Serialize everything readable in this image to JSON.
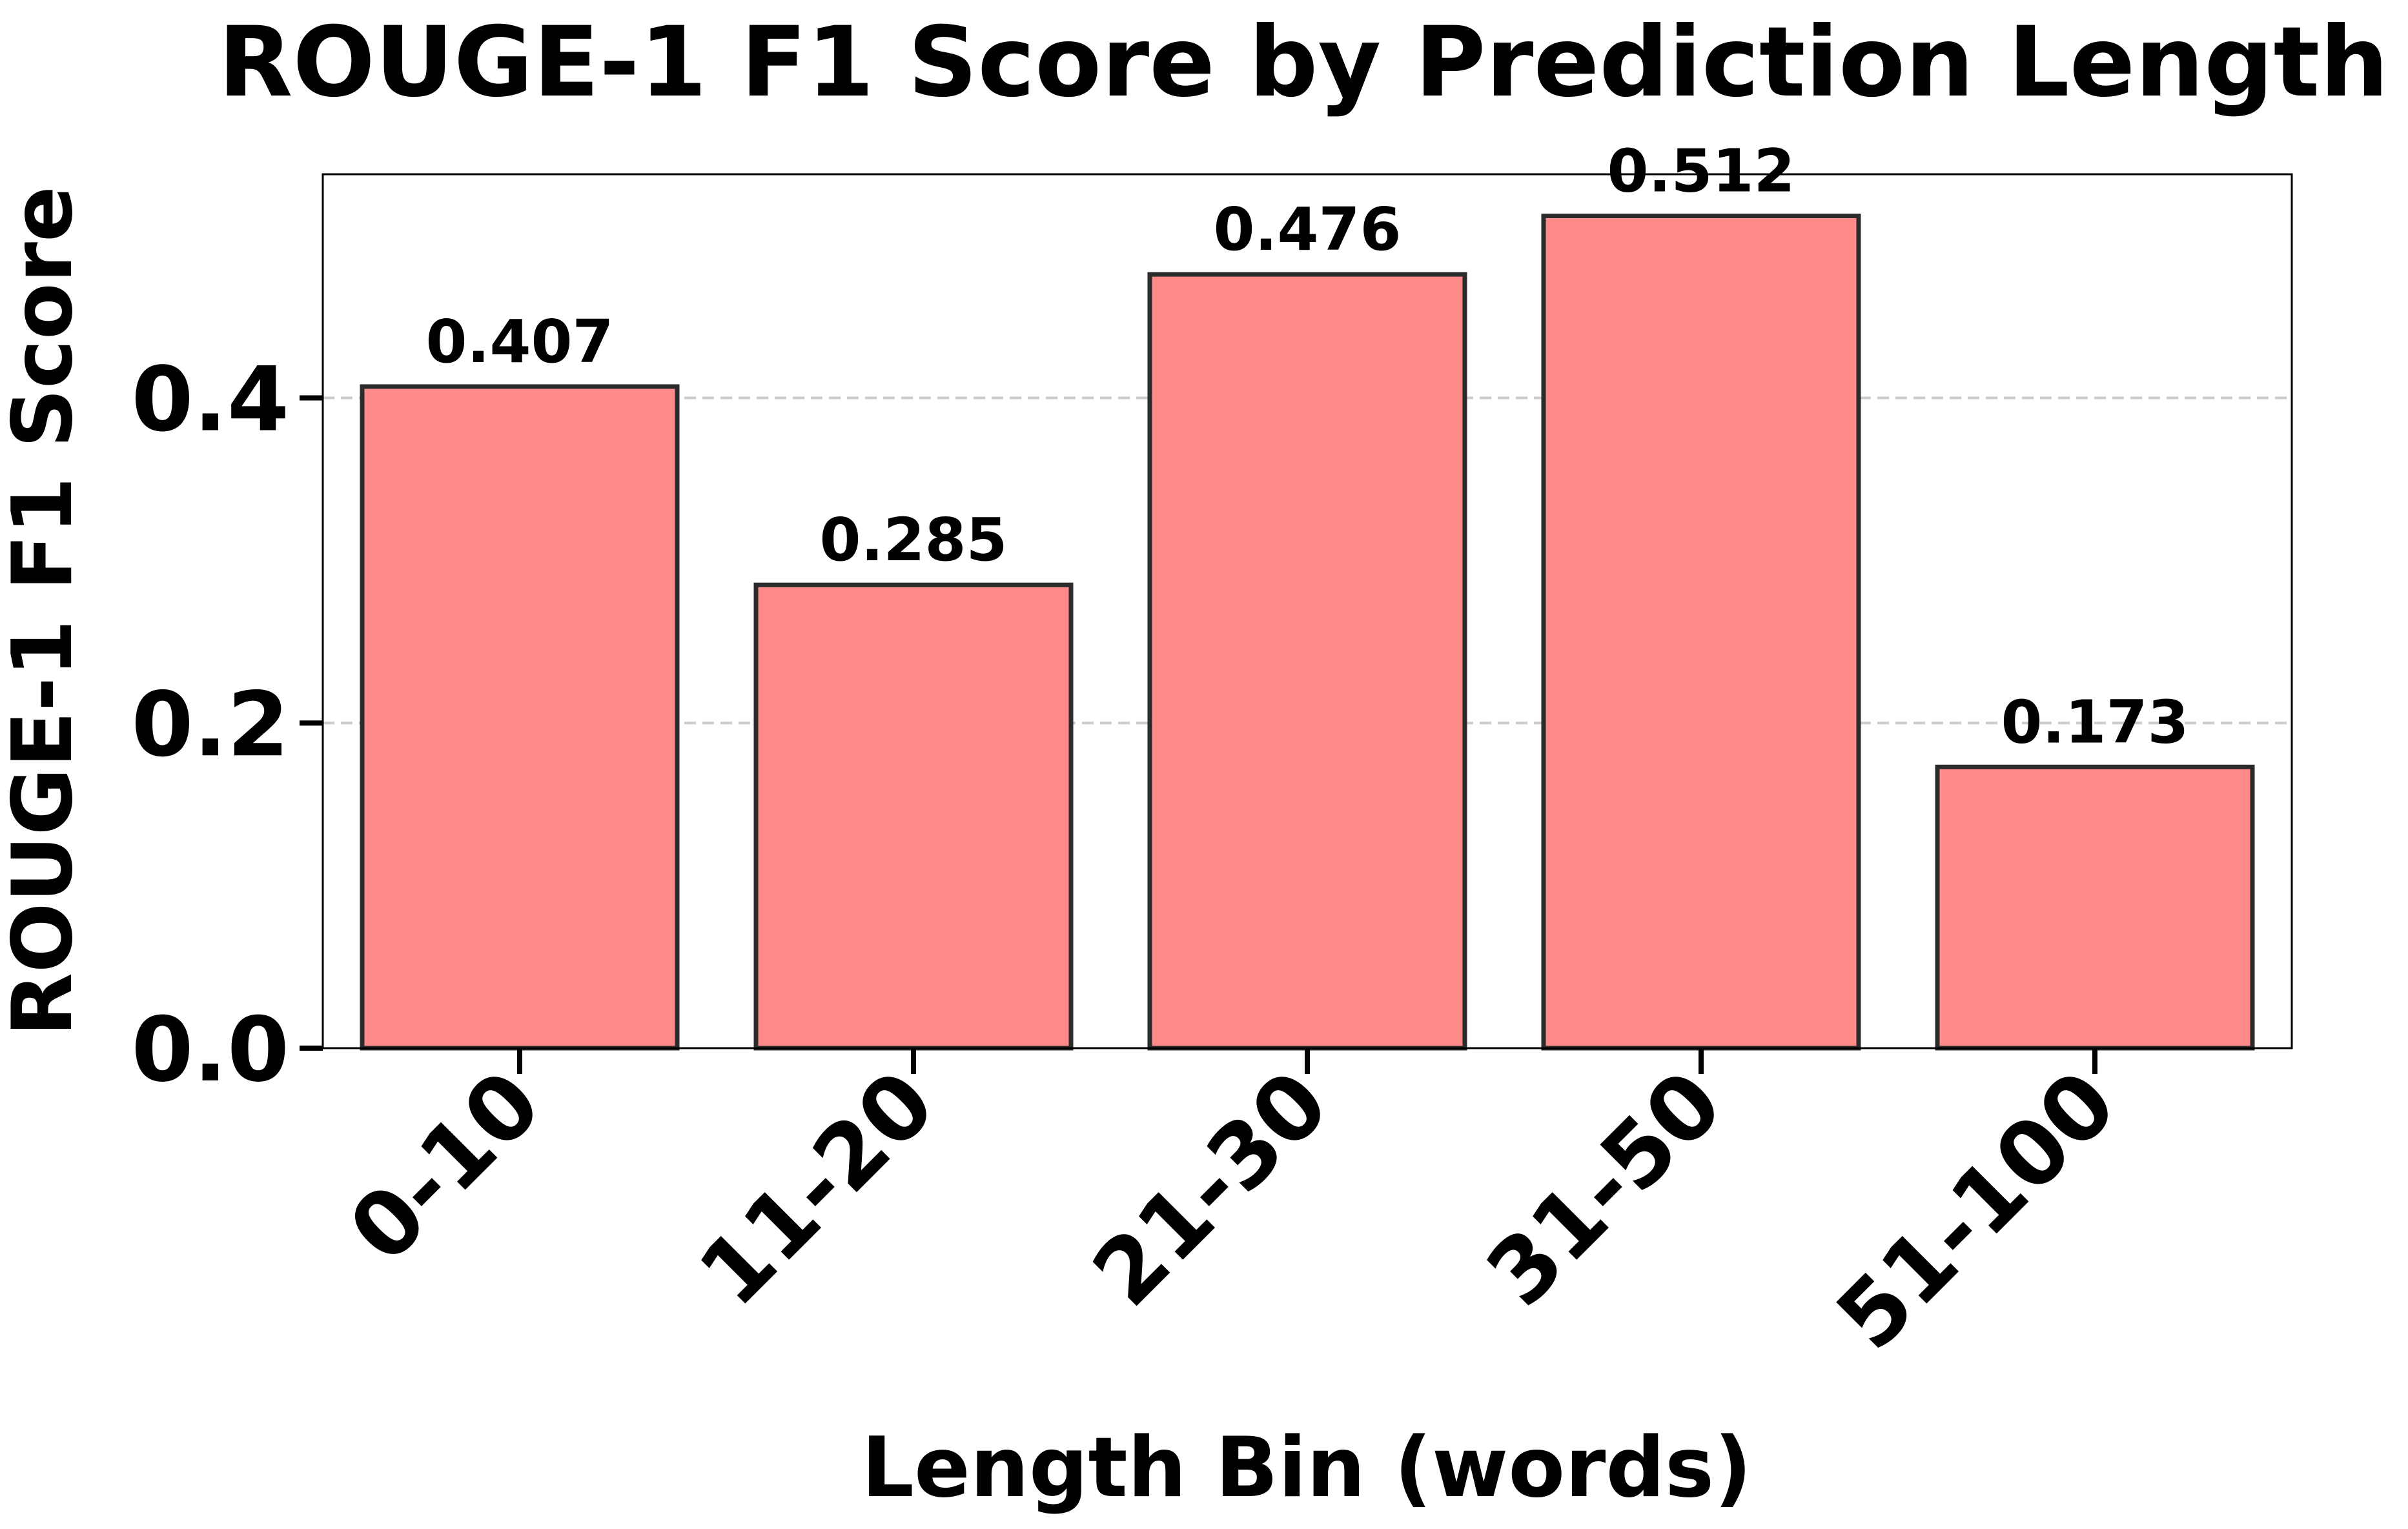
{
  "chart_data": {
    "type": "bar",
    "title": "ROUGE-1 F1 Score by Prediction Length",
    "xlabel": "Length Bin (words)",
    "ylabel": "ROUGE-1 F1 Score",
    "categories": [
      "0-10",
      "11-20",
      "21-30",
      "31-50",
      "51-100"
    ],
    "values": [
      0.407,
      0.285,
      0.476,
      0.512,
      0.173
    ],
    "data_labels": [
      "0.407",
      "0.285",
      "0.476",
      "0.512",
      "0.173"
    ],
    "yticks": [
      0.0,
      0.2,
      0.4
    ],
    "ytick_labels": [
      "0.0",
      "0.2",
      "0.4"
    ],
    "ylim": [
      0,
      0.5376
    ],
    "grid": "y-dashed",
    "bar_color": "#ff8a8a",
    "bar_edge_color": "#2b2b2b",
    "grid_color": "#cccccc"
  }
}
